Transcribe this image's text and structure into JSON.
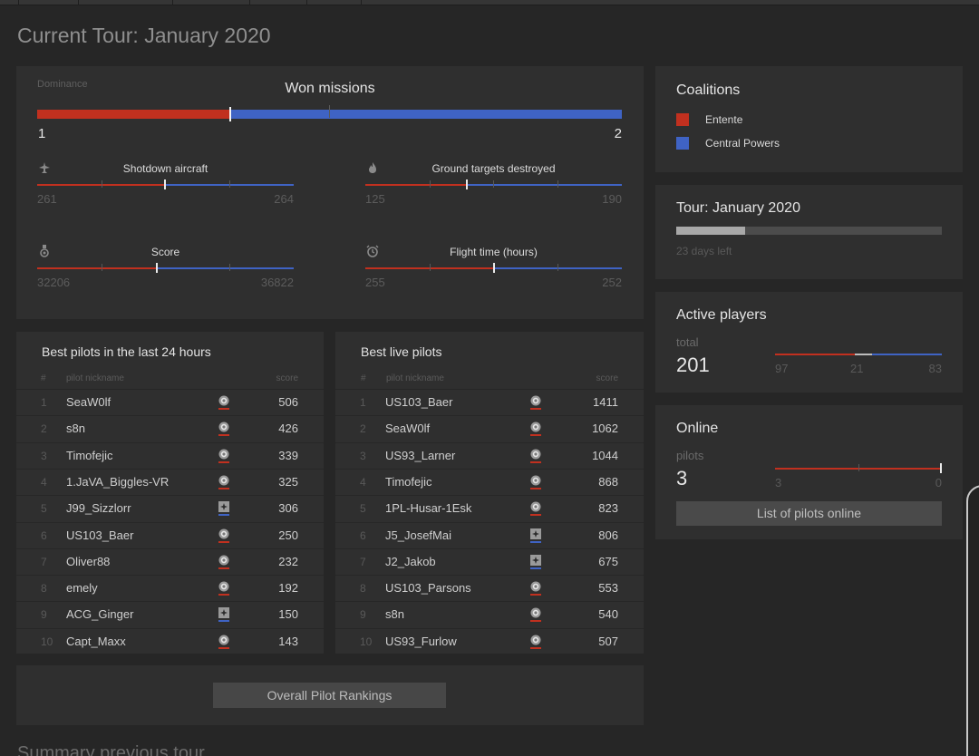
{
  "page": {
    "title": "Current Tour: January 2020",
    "next_section_title": "Summary previous tour"
  },
  "colors": {
    "entente": "#c1301f",
    "central_powers": "#3f63c4"
  },
  "dominance": {
    "label": "Dominance",
    "title": "Won missions",
    "left_value": "1",
    "right_value": "2",
    "entente_fraction": 0.33,
    "stats": [
      {
        "icon": "plane-icon",
        "label": "Shotdown aircraft",
        "left": "261",
        "right": "264",
        "entente_fraction": 0.497
      },
      {
        "icon": "fire-icon",
        "label": "Ground targets destroyed",
        "left": "125",
        "right": "190",
        "entente_fraction": 0.397
      },
      {
        "icon": "medal-icon",
        "label": "Score",
        "left": "32206",
        "right": "36822",
        "entente_fraction": 0.467
      },
      {
        "icon": "clock-icon",
        "label": "Flight time (hours)",
        "left": "255",
        "right": "252",
        "entente_fraction": 0.503
      }
    ]
  },
  "best_last_24h": {
    "title": "Best pilots in the last 24 hours",
    "columns": {
      "num": "#",
      "nickname": "pilot nickname",
      "score": "score"
    },
    "rows": [
      {
        "num": "1",
        "name": "SeaW0lf",
        "coalition": "entente",
        "score": "506"
      },
      {
        "num": "2",
        "name": "s8n",
        "coalition": "entente",
        "score": "426"
      },
      {
        "num": "3",
        "name": "Timofejic",
        "coalition": "entente",
        "score": "339"
      },
      {
        "num": "4",
        "name": "1.JaVA_Biggles-VR",
        "coalition": "entente",
        "score": "325"
      },
      {
        "num": "5",
        "name": "J99_Sizzlorr",
        "coalition": "central",
        "score": "306"
      },
      {
        "num": "6",
        "name": "US103_Baer",
        "coalition": "entente",
        "score": "250"
      },
      {
        "num": "7",
        "name": "Oliver88",
        "coalition": "entente",
        "score": "232"
      },
      {
        "num": "8",
        "name": "emely",
        "coalition": "entente",
        "score": "192"
      },
      {
        "num": "9",
        "name": "ACG_Ginger",
        "coalition": "central",
        "score": "150"
      },
      {
        "num": "10",
        "name": "Capt_Maxx",
        "coalition": "entente",
        "score": "143"
      }
    ]
  },
  "best_live": {
    "title": "Best live pilots",
    "columns": {
      "num": "#",
      "nickname": "pilot nickname",
      "score": "score"
    },
    "rows": [
      {
        "num": "1",
        "name": "US103_Baer",
        "coalition": "entente",
        "score": "1411"
      },
      {
        "num": "2",
        "name": "SeaW0lf",
        "coalition": "entente",
        "score": "1062"
      },
      {
        "num": "3",
        "name": "US93_Larner",
        "coalition": "entente",
        "score": "1044"
      },
      {
        "num": "4",
        "name": "Timofejic",
        "coalition": "entente",
        "score": "868"
      },
      {
        "num": "5",
        "name": "1PL-Husar-1Esk",
        "coalition": "entente",
        "score": "823"
      },
      {
        "num": "6",
        "name": "J5_JosefMai",
        "coalition": "central",
        "score": "806"
      },
      {
        "num": "7",
        "name": "J2_Jakob",
        "coalition": "central",
        "score": "675"
      },
      {
        "num": "8",
        "name": "US103_Parsons",
        "coalition": "entente",
        "score": "553"
      },
      {
        "num": "9",
        "name": "s8n",
        "coalition": "entente",
        "score": "540"
      },
      {
        "num": "10",
        "name": "US93_Furlow",
        "coalition": "entente",
        "score": "507"
      }
    ]
  },
  "rankings_button": "Overall Pilot Rankings",
  "coalitions": {
    "title": "Coalitions",
    "items": [
      {
        "label": "Entente",
        "color": "#c1301f"
      },
      {
        "label": "Central Powers",
        "color": "#3f63c4"
      }
    ]
  },
  "tour": {
    "title": "Tour: January 2020",
    "progress_fraction": 0.26,
    "days_left": "23 days left"
  },
  "active_players": {
    "title": "Active players",
    "label": "total",
    "total": "201",
    "entente": "97",
    "neutral": "21",
    "central": "83",
    "entente_fraction": 0.48,
    "neutral_fraction": 0.1
  },
  "online": {
    "title": "Online",
    "label": "pilots",
    "total": "3",
    "entente": "3",
    "central": "0",
    "entente_fraction": 1.0,
    "button": "List of pilots online"
  }
}
